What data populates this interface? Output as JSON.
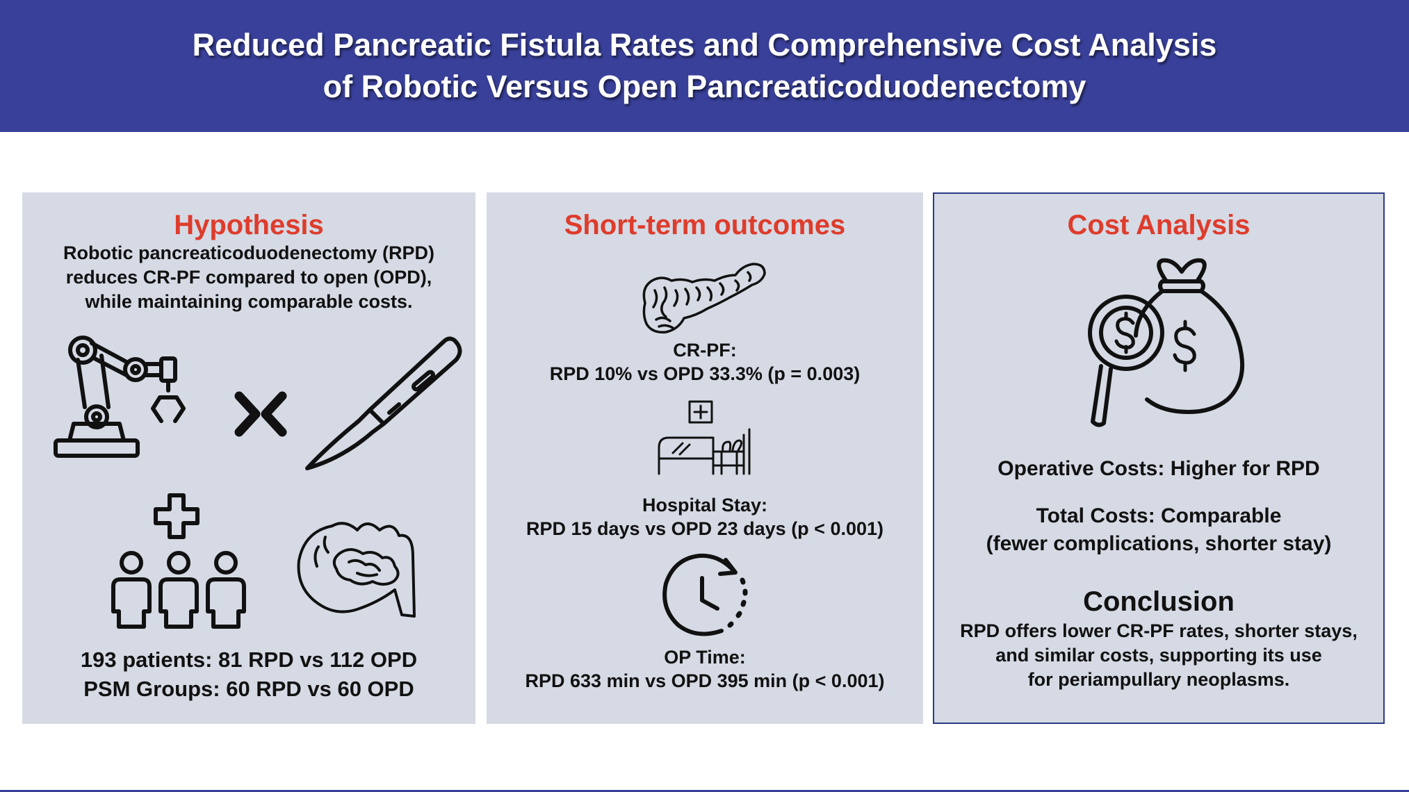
{
  "header": {
    "title_line1": "Reduced Pancreatic Fistula Rates and Comprehensive Cost Analysis",
    "title_line2": "of Robotic Versus Open Pancreaticoduodenectomy"
  },
  "hypothesis": {
    "title": "Hypothesis",
    "text_line1": "Robotic pancreaticoduodenectomy (RPD)",
    "text_line2": "reduces CR-PF compared to open (OPD),",
    "text_line3": "while maintaining comparable costs.",
    "patients": "193 patients: 81 RPD vs 112 OPD",
    "psm": "PSM Groups: 60 RPD vs 60 OPD",
    "icons": [
      "robotic-arm-icon",
      "versus-icon",
      "scalpel-icon",
      "medical-cross-icon",
      "patients-group-icon",
      "pancreas-duodenum-icon"
    ]
  },
  "outcomes": {
    "title": "Short-term outcomes",
    "crpf_label": "CR-PF:",
    "crpf_value": "RPD 10% vs OPD 33.3% (p = 0.003)",
    "stay_label": "Hospital Stay:",
    "stay_value": "RPD 15 days vs OPD 23 days (p < 0.001)",
    "optime_label": "OP Time:",
    "optime_value": "RPD 633 min vs OPD 395 min (p < 0.001)",
    "icons": [
      "pancreas-icon",
      "hospital-bed-icon",
      "clock-icon"
    ]
  },
  "cost": {
    "title": "Cost Analysis",
    "operative": "Operative Costs: Higher for RPD",
    "total_line1": "Total Costs: Comparable",
    "total_line2": "(fewer complications, shorter stay)",
    "conclusion_title": "Conclusion",
    "conclusion_line1": "RPD offers lower CR-PF rates, shorter stays,",
    "conclusion_line2": "and similar costs, supporting its use",
    "conclusion_line3": "for periampullary neoplasms.",
    "icons": [
      "money-bag-magnifier-icon"
    ]
  },
  "colors": {
    "header_bg": "#39409a",
    "panel_bg": "#d5dae4",
    "title_red": "#de3c2c",
    "panel_border": "#2c3a86"
  }
}
